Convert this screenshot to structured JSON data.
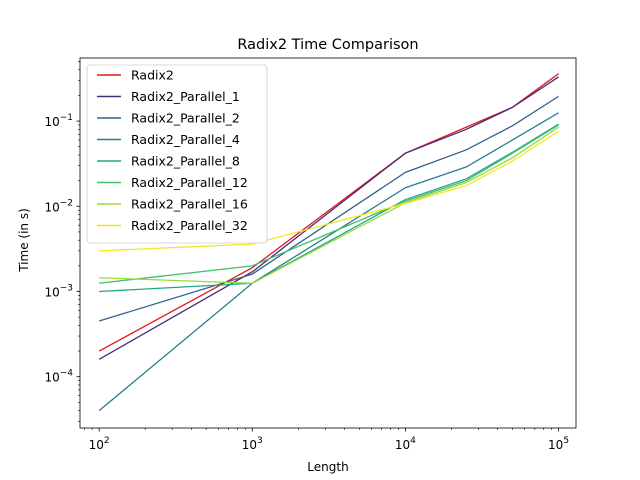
{
  "chart_data": {
    "type": "line",
    "title": "Radix2 Time Comparison",
    "xlabel": "Length",
    "ylabel": "Time (in s)",
    "xscale": "log",
    "yscale": "log",
    "xlim": [
      75,
      130000
    ],
    "ylim": [
      2.5e-05,
      0.55
    ],
    "x_ticks": [
      {
        "value": 100,
        "base": "10",
        "exp": "2"
      },
      {
        "value": 1000,
        "base": "10",
        "exp": "3"
      },
      {
        "value": 10000,
        "base": "10",
        "exp": "4"
      },
      {
        "value": 100000,
        "base": "10",
        "exp": "5"
      }
    ],
    "y_ticks": [
      {
        "value": 0.0001,
        "base": "10",
        "exp": "−4"
      },
      {
        "value": 0.001,
        "base": "10",
        "exp": "−3"
      },
      {
        "value": 0.01,
        "base": "10",
        "exp": "−2"
      },
      {
        "value": 0.1,
        "base": "10",
        "exp": "−1"
      }
    ],
    "grid": false,
    "legend_position": "top-left",
    "x": [
      100,
      1000,
      10000,
      25000,
      50000,
      100000
    ],
    "series": [
      {
        "name": "Radix2",
        "color": "#e41a1c",
        "values": [
          0.0002,
          0.0019,
          0.042,
          0.085,
          0.145,
          0.36
        ]
      },
      {
        "name": "Radix2_Parallel_1",
        "color": "#472c7a",
        "values": [
          0.00016,
          0.0017,
          0.042,
          0.08,
          0.145,
          0.33
        ]
      },
      {
        "name": "Radix2_Parallel_2",
        "color": "#35608d",
        "values": [
          0.00045,
          0.0016,
          0.025,
          0.046,
          0.088,
          0.195
        ]
      },
      {
        "name": "Radix2_Parallel_4",
        "color": "#277f8e",
        "values": [
          4e-05,
          0.00125,
          0.0165,
          0.029,
          0.06,
          0.125
        ]
      },
      {
        "name": "Radix2_Parallel_8",
        "color": "#22a884",
        "values": [
          0.001,
          0.00125,
          0.012,
          0.021,
          0.043,
          0.092
        ]
      },
      {
        "name": "Radix2_Parallel_12",
        "color": "#44bf70",
        "values": [
          0.00125,
          0.002,
          0.0115,
          0.02,
          0.042,
          0.09
        ]
      },
      {
        "name": "Radix2_Parallel_16",
        "color": "#9bd93c",
        "values": [
          0.00145,
          0.00125,
          0.011,
          0.019,
          0.037,
          0.085
        ]
      },
      {
        "name": "Radix2_Parallel_32",
        "color": "#f4e61e",
        "values": [
          0.003,
          0.0036,
          0.0108,
          0.0175,
          0.034,
          0.076
        ]
      }
    ]
  }
}
